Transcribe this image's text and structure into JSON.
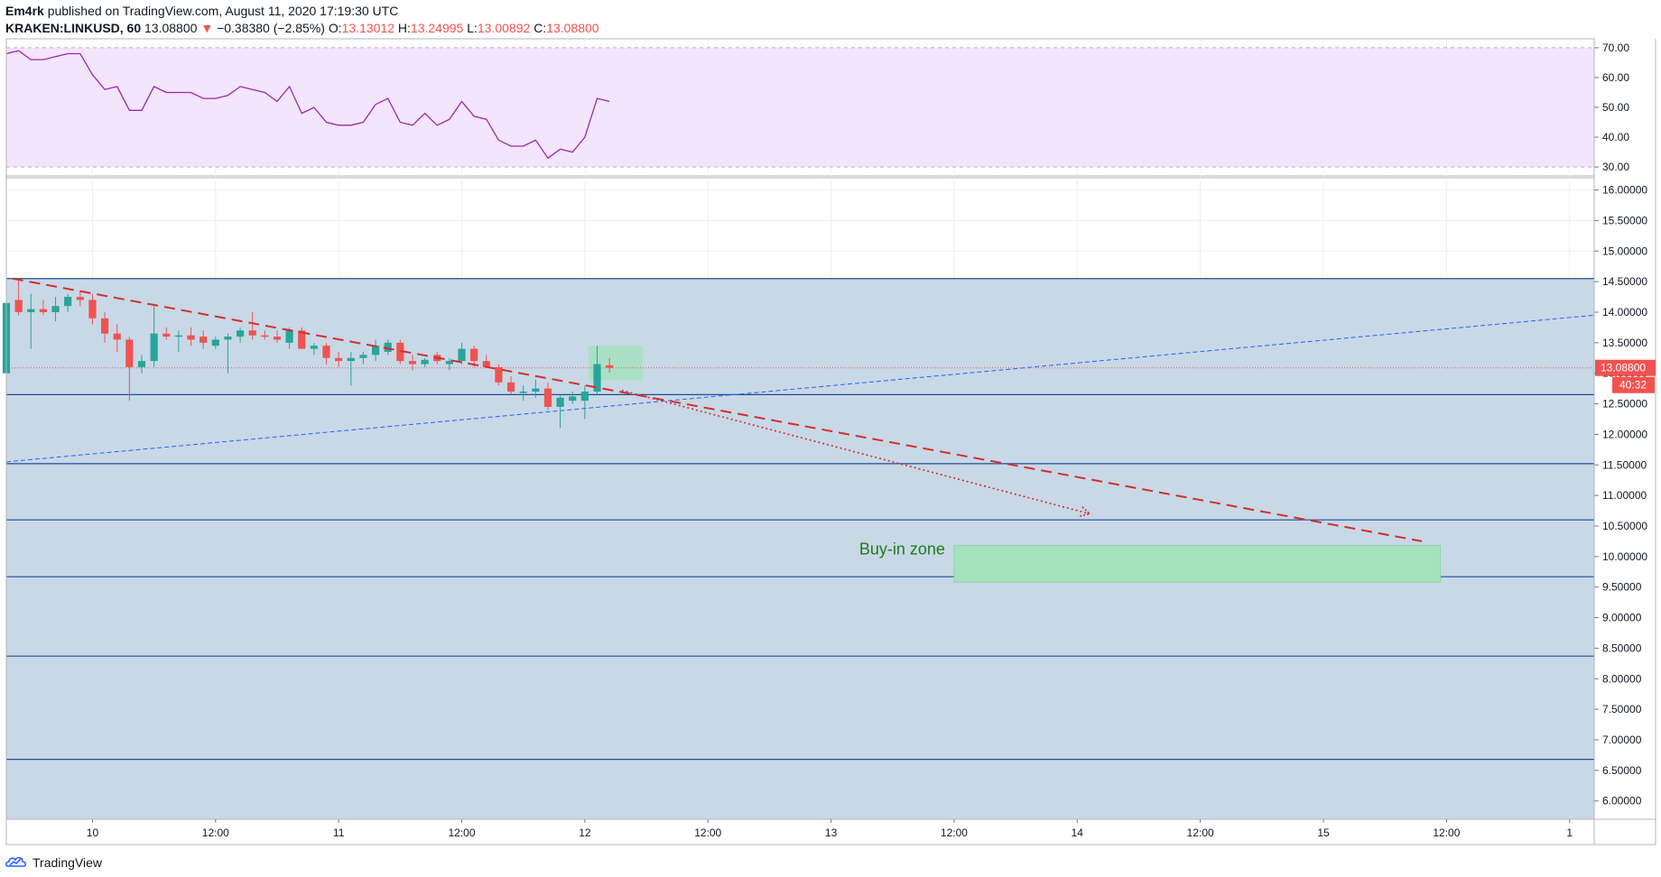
{
  "header": {
    "line1": {
      "author": "Em4rk",
      "rest": " published on TradingView.com, August 11, 2020 17:19:30 UTC"
    },
    "line2": {
      "symbol": "KRAKEN:LINKUSD, 60",
      "last": "13.08800",
      "change": "−0.38380 (−2.85%)",
      "o_label": "O:",
      "o_value": "13.13012",
      "h_label": "H:",
      "h_value": "13.24995",
      "l_label": "L:",
      "l_value": "13.00892",
      "c_label": "C:",
      "c_value": "13.08800"
    }
  },
  "footer": {
    "logo_icon": "tradingview-cloud-icon",
    "brand": "TradingView"
  },
  "colors": {
    "up": "#26a69a",
    "down": "#ef5350",
    "rsi_line": "#9c27b0",
    "rsi_band": "#f3e5fc",
    "zone_fill": "#c8d8e6",
    "hline": "#1f4e99",
    "resistance": "#d32f2f",
    "support": "#2962ff",
    "buy_zone": "#a5e3bf",
    "buy_label": "#1e7b1e",
    "price_tag": "#ef5350"
  },
  "chart_data": [
    {
      "type": "line",
      "name": "RSI",
      "yticks": [
        30,
        40,
        50,
        60,
        70
      ],
      "ylim": [
        27,
        73
      ],
      "band": [
        30,
        70
      ],
      "xlim": [
        0,
        129
      ],
      "x": [
        0,
        1,
        2,
        3,
        4,
        5,
        6,
        7,
        8,
        9,
        10,
        11,
        12,
        13,
        14,
        15,
        16,
        17,
        18,
        19,
        20,
        21,
        22,
        23,
        24,
        25,
        26,
        27,
        28,
        29,
        30,
        31,
        32,
        33,
        34,
        35,
        36,
        37,
        38,
        39,
        40,
        41,
        42,
        43,
        44,
        45,
        46,
        47,
        48,
        49
      ],
      "values": [
        68,
        69,
        66,
        66,
        67,
        68,
        68,
        61,
        56,
        57,
        49,
        49,
        57,
        55,
        55,
        55,
        53,
        53,
        54,
        57,
        56,
        55,
        52,
        57,
        48,
        50,
        45,
        44,
        44,
        45,
        51,
        53,
        45,
        44,
        48,
        44,
        46,
        52,
        47,
        46,
        39,
        37,
        37,
        39,
        33,
        36,
        35,
        40,
        53,
        52
      ]
    },
    {
      "type": "candlestick",
      "name": "LINKUSD 60",
      "yticks": [
        "6.00000",
        "6.50000",
        "7.00000",
        "7.50000",
        "8.00000",
        "8.50000",
        "9.00000",
        "9.50000",
        "10.00000",
        "10.50000",
        "11.00000",
        "11.50000",
        "12.00000",
        "12.50000",
        "13.00000",
        "13.50000",
        "14.00000",
        "14.50000",
        "15.00000",
        "15.50000",
        "16.00000"
      ],
      "ylim": [
        5.7,
        16.2
      ],
      "xlim": [
        0,
        129
      ],
      "xticks": [
        {
          "x": 7,
          "label": "10"
        },
        {
          "x": 17,
          "label": "12:00"
        },
        {
          "x": 27,
          "label": "11"
        },
        {
          "x": 37,
          "label": "12:00"
        },
        {
          "x": 47,
          "label": "12"
        },
        {
          "x": 57,
          "label": "12:00"
        },
        {
          "x": 67,
          "label": "13"
        },
        {
          "x": 77,
          "label": "12:00"
        },
        {
          "x": 87,
          "label": "14"
        },
        {
          "x": 97,
          "label": "12:00"
        },
        {
          "x": 107,
          "label": "15"
        },
        {
          "x": 117,
          "label": "12:00"
        },
        {
          "x": 127,
          "label": "1"
        }
      ],
      "candles": [
        {
          "x": 0,
          "o": 13.0,
          "h": 14.3,
          "l": 12.95,
          "c": 14.15
        },
        {
          "x": 1,
          "o": 14.2,
          "h": 14.55,
          "l": 13.95,
          "c": 14.0
        },
        {
          "x": 2,
          "o": 14.0,
          "h": 14.3,
          "l": 13.4,
          "c": 14.05
        },
        {
          "x": 3,
          "o": 14.05,
          "h": 14.2,
          "l": 13.95,
          "c": 14.0
        },
        {
          "x": 4,
          "o": 14.0,
          "h": 14.25,
          "l": 13.85,
          "c": 14.1
        },
        {
          "x": 5,
          "o": 14.1,
          "h": 14.3,
          "l": 14.0,
          "c": 14.25
        },
        {
          "x": 6,
          "o": 14.25,
          "h": 14.35,
          "l": 14.1,
          "c": 14.2
        },
        {
          "x": 7,
          "o": 14.2,
          "h": 14.3,
          "l": 13.8,
          "c": 13.9
        },
        {
          "x": 8,
          "o": 13.9,
          "h": 14.0,
          "l": 13.5,
          "c": 13.65
        },
        {
          "x": 9,
          "o": 13.65,
          "h": 13.8,
          "l": 13.35,
          "c": 13.55
        },
        {
          "x": 10,
          "o": 13.55,
          "h": 13.6,
          "l": 12.55,
          "c": 13.1
        },
        {
          "x": 11,
          "o": 13.1,
          "h": 13.3,
          "l": 13.0,
          "c": 13.2
        },
        {
          "x": 12,
          "o": 13.2,
          "h": 14.1,
          "l": 13.1,
          "c": 13.65
        },
        {
          "x": 13,
          "o": 13.65,
          "h": 13.75,
          "l": 13.55,
          "c": 13.6
        },
        {
          "x": 14,
          "o": 13.6,
          "h": 13.7,
          "l": 13.35,
          "c": 13.62
        },
        {
          "x": 15,
          "o": 13.62,
          "h": 13.75,
          "l": 13.45,
          "c": 13.55
        },
        {
          "x": 16,
          "o": 13.6,
          "h": 13.7,
          "l": 13.4,
          "c": 13.5
        },
        {
          "x": 17,
          "o": 13.45,
          "h": 13.6,
          "l": 13.4,
          "c": 13.55
        },
        {
          "x": 18,
          "o": 13.55,
          "h": 13.65,
          "l": 13.0,
          "c": 13.6
        },
        {
          "x": 19,
          "o": 13.6,
          "h": 13.75,
          "l": 13.5,
          "c": 13.7
        },
        {
          "x": 20,
          "o": 13.7,
          "h": 14.0,
          "l": 13.55,
          "c": 13.62
        },
        {
          "x": 21,
          "o": 13.62,
          "h": 13.7,
          "l": 13.55,
          "c": 13.6
        },
        {
          "x": 22,
          "o": 13.6,
          "h": 13.7,
          "l": 13.5,
          "c": 13.55
        },
        {
          "x": 23,
          "o": 13.5,
          "h": 13.75,
          "l": 13.4,
          "c": 13.7
        },
        {
          "x": 24,
          "o": 13.7,
          "h": 13.75,
          "l": 13.4,
          "c": 13.4
        },
        {
          "x": 25,
          "o": 13.4,
          "h": 13.5,
          "l": 13.3,
          "c": 13.45
        },
        {
          "x": 26,
          "o": 13.45,
          "h": 13.5,
          "l": 13.15,
          "c": 13.25
        },
        {
          "x": 27,
          "o": 13.25,
          "h": 13.35,
          "l": 13.1,
          "c": 13.2
        },
        {
          "x": 28,
          "o": 13.2,
          "h": 13.35,
          "l": 12.8,
          "c": 13.25
        },
        {
          "x": 29,
          "o": 13.25,
          "h": 13.35,
          "l": 13.15,
          "c": 13.3
        },
        {
          "x": 30,
          "o": 13.3,
          "h": 13.55,
          "l": 13.2,
          "c": 13.45
        },
        {
          "x": 31,
          "o": 13.35,
          "h": 13.55,
          "l": 13.3,
          "c": 13.5
        },
        {
          "x": 32,
          "o": 13.5,
          "h": 13.55,
          "l": 13.15,
          "c": 13.2
        },
        {
          "x": 33,
          "o": 13.2,
          "h": 13.3,
          "l": 13.05,
          "c": 13.15
        },
        {
          "x": 34,
          "o": 13.15,
          "h": 13.25,
          "l": 13.1,
          "c": 13.22
        },
        {
          "x": 35,
          "o": 13.3,
          "h": 13.35,
          "l": 13.15,
          "c": 13.2
        },
        {
          "x": 36,
          "o": 13.15,
          "h": 13.25,
          "l": 13.05,
          "c": 13.2
        },
        {
          "x": 37,
          "o": 13.2,
          "h": 13.5,
          "l": 13.15,
          "c": 13.4
        },
        {
          "x": 38,
          "o": 13.4,
          "h": 13.45,
          "l": 13.1,
          "c": 13.2
        },
        {
          "x": 39,
          "o": 13.2,
          "h": 13.3,
          "l": 13.1,
          "c": 13.1
        },
        {
          "x": 40,
          "o": 13.1,
          "h": 13.15,
          "l": 12.8,
          "c": 12.85
        },
        {
          "x": 41,
          "o": 12.85,
          "h": 12.95,
          "l": 12.65,
          "c": 12.7
        },
        {
          "x": 42,
          "o": 12.7,
          "h": 12.8,
          "l": 12.55,
          "c": 12.7
        },
        {
          "x": 43,
          "o": 12.7,
          "h": 12.9,
          "l": 12.6,
          "c": 12.75
        },
        {
          "x": 44,
          "o": 12.75,
          "h": 12.85,
          "l": 12.4,
          "c": 12.45
        },
        {
          "x": 45,
          "o": 12.45,
          "h": 12.65,
          "l": 12.1,
          "c": 12.6
        },
        {
          "x": 46,
          "o": 12.55,
          "h": 12.7,
          "l": 12.5,
          "c": 12.62
        },
        {
          "x": 47,
          "o": 12.55,
          "h": 12.8,
          "l": 12.25,
          "c": 12.7
        },
        {
          "x": 48,
          "o": 12.7,
          "h": 13.45,
          "l": 12.65,
          "c": 13.15
        },
        {
          "x": 49,
          "o": 13.13,
          "h": 13.25,
          "l": 13.01,
          "c": 13.09
        }
      ],
      "current_price": "13.08800",
      "countdown": "40:32",
      "horizontal_levels": [
        14.55,
        12.65,
        11.52,
        10.6,
        9.67,
        8.37,
        6.68
      ],
      "zone_range": [
        5.7,
        14.55
      ],
      "resistance_line": {
        "x": [
          0.5,
          115
        ],
        "y": [
          14.55,
          10.25
        ]
      },
      "support_line": {
        "x": [
          0,
          129
        ],
        "y": [
          11.55,
          13.95
        ]
      },
      "projection_line": {
        "x": [
          50,
          88
        ],
        "y": [
          12.72,
          10.7
        ]
      },
      "breakout_box": {
        "x": [
          47.3,
          51.7
        ],
        "y": [
          12.88,
          13.45
        ]
      },
      "buy_zone": {
        "x": [
          77,
          116.5
        ],
        "y": [
          9.58,
          10.18
        ],
        "label": "Buy-in zone"
      }
    }
  ]
}
